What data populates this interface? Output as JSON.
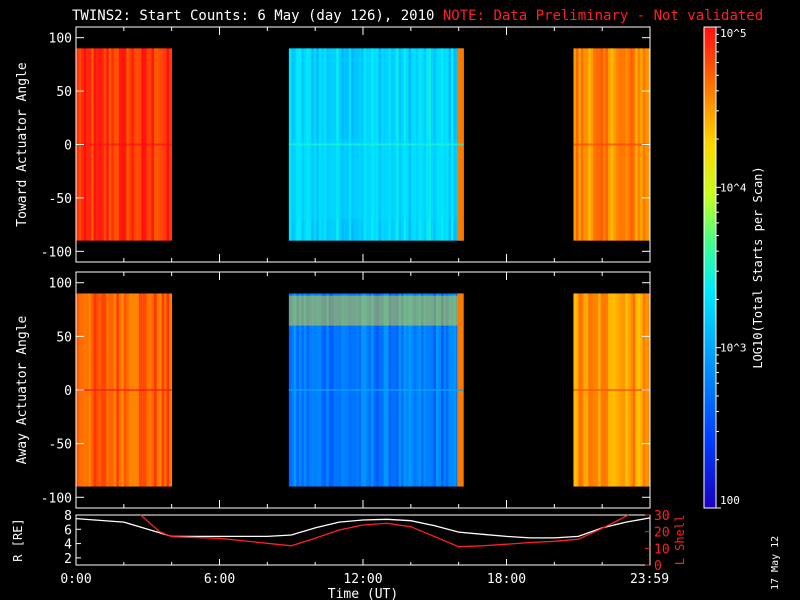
{
  "title": {
    "main": "TWINS2: Start Counts:  6 May (day 126), 2010",
    "note": "NOTE: Data Preliminary - Not validated",
    "note_color": "#ff2020"
  },
  "stamp": "17 May 12",
  "chart_data": [
    {
      "type": "heatmap",
      "title": "",
      "ylabel": "Toward Actuator Angle",
      "ylim": [
        -110,
        110
      ],
      "yticks": [
        "100",
        "50",
        "0",
        "-50",
        "-100"
      ],
      "ytick_values": [
        100,
        50,
        0,
        -50,
        -100
      ],
      "angle_range": [
        -90,
        90
      ],
      "xlim_hours": [
        0,
        24
      ],
      "data_intervals_hours": [
        [
          0.0,
          4.0
        ],
        [
          8.9,
          16.2
        ],
        [
          20.8,
          24.0
        ]
      ],
      "colorbar": {
        "label": "LOG10(Total Starts per Scan)",
        "scale": "log",
        "range": [
          100,
          100000
        ],
        "tick_labels": [
          "10^5",
          "10^4",
          "10^3",
          "100"
        ]
      },
      "log_levels": [
        {
          "interval": [
            0.0,
            4.0
          ],
          "level": 4.85
        },
        {
          "interval": [
            8.9,
            16.2
          ],
          "level": 3.25
        },
        {
          "interval": [
            20.8,
            24.0
          ],
          "level": 4.55
        }
      ]
    },
    {
      "type": "heatmap",
      "title": "",
      "ylabel": "Away Actuator Angle",
      "ylim": [
        -110,
        110
      ],
      "yticks": [
        "100",
        "50",
        "0",
        "-50",
        "-100"
      ],
      "ytick_values": [
        100,
        50,
        0,
        -50,
        -100
      ],
      "angle_range": [
        -90,
        90
      ],
      "xlim_hours": [
        0,
        24
      ],
      "data_intervals_hours": [
        [
          0.0,
          4.0
        ],
        [
          8.9,
          16.2
        ],
        [
          20.8,
          24.0
        ]
      ],
      "log_levels": [
        {
          "interval": [
            0.0,
            4.0
          ],
          "level": 4.7
        },
        {
          "interval": [
            8.9,
            16.2
          ],
          "level": 2.75
        },
        {
          "interval": [
            20.8,
            24.0
          ],
          "level": 4.5
        }
      ]
    },
    {
      "type": "line",
      "title": "",
      "xlabel": "Time (UT)",
      "xticks": [
        "0:00",
        "6:00",
        "12:00",
        "18:00",
        "23:59"
      ],
      "xtick_values": [
        0,
        6,
        12,
        18,
        23.98
      ],
      "ylabel_left": "R [RE]",
      "ylabel_right": "L Shell",
      "ylim_left": [
        1,
        8
      ],
      "yticks_left": [
        "8",
        "6",
        "4",
        "2"
      ],
      "ylim_right": [
        0,
        30
      ],
      "yticks_right": [
        "30",
        "20",
        "10",
        "0"
      ],
      "series": [
        {
          "name": "R [RE]",
          "color": "#ffffff",
          "x": [
            0,
            2,
            4,
            6,
            8,
            9,
            10,
            11,
            12,
            13,
            14,
            15,
            16,
            17,
            18,
            19,
            20,
            21,
            22,
            23,
            24
          ],
          "y": [
            7.5,
            7.0,
            5.0,
            5.0,
            5.0,
            5.2,
            6.2,
            7.0,
            7.3,
            7.4,
            7.2,
            6.5,
            5.6,
            5.3,
            5.0,
            4.8,
            4.8,
            5.0,
            6.2,
            7.0,
            7.6
          ]
        },
        {
          "name": "L Shell",
          "color": "#ff2020",
          "x": [
            2.7,
            3.5,
            4.0,
            6,
            8,
            9,
            10,
            11,
            12,
            13,
            14,
            15,
            16,
            17,
            18,
            19,
            20,
            21,
            22,
            23.1
          ],
          "y": [
            30,
            20,
            17,
            16,
            13,
            11.5,
            16,
            21,
            24,
            25,
            23,
            17,
            11,
            11.5,
            12.5,
            13.5,
            14.2,
            15.5,
            22,
            30
          ]
        }
      ]
    }
  ]
}
